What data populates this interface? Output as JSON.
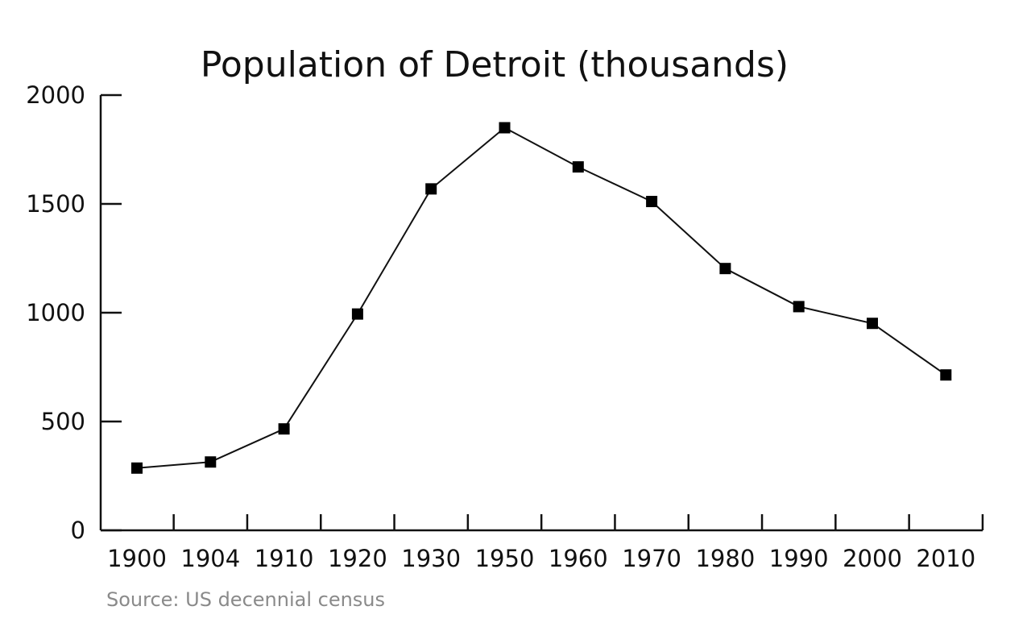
{
  "chart_data": {
    "type": "line",
    "title": "Population of Detroit (thousands)",
    "source": "Source: US decennial census",
    "categories": [
      "1900",
      "1904",
      "1910",
      "1920",
      "1930",
      "1950",
      "1960",
      "1970",
      "1980",
      "1990",
      "2000",
      "2010"
    ],
    "series": [
      {
        "values": [
          286,
          314,
          466,
          994,
          1569,
          1850,
          1670,
          1511,
          1203,
          1028,
          951,
          714
        ]
      }
    ],
    "yticks": [
      0,
      500,
      1000,
      1500,
      2000
    ],
    "ylim": [
      0,
      2000
    ],
    "grid": false,
    "legend": "none",
    "marker": "square",
    "colors": {
      "line": "#111111",
      "marker": "#000000",
      "axis": "#111111",
      "source": "#8a8a8a"
    }
  }
}
